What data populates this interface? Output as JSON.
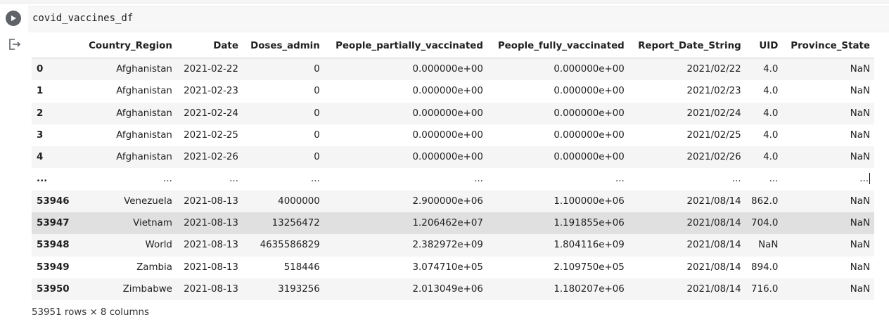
{
  "cell": {
    "code": "covid_vaccines_df",
    "run_icon": "play-icon",
    "output_icon": "output-redirect-icon"
  },
  "table": {
    "columns": [
      "",
      "Country_Region",
      "Date",
      "Doses_admin",
      "People_partially_vaccinated",
      "People_fully_vaccinated",
      "Report_Date_String",
      "UID",
      "Province_State"
    ],
    "rows": [
      {
        "index": "0",
        "cells": [
          "Afghanistan",
          "2021-02-22",
          "0",
          "0.000000e+00",
          "0.000000e+00",
          "2021/02/22",
          "4.0",
          "NaN"
        ]
      },
      {
        "index": "1",
        "cells": [
          "Afghanistan",
          "2021-02-23",
          "0",
          "0.000000e+00",
          "0.000000e+00",
          "2021/02/23",
          "4.0",
          "NaN"
        ]
      },
      {
        "index": "2",
        "cells": [
          "Afghanistan",
          "2021-02-24",
          "0",
          "0.000000e+00",
          "0.000000e+00",
          "2021/02/24",
          "4.0",
          "NaN"
        ]
      },
      {
        "index": "3",
        "cells": [
          "Afghanistan",
          "2021-02-25",
          "0",
          "0.000000e+00",
          "0.000000e+00",
          "2021/02/25",
          "4.0",
          "NaN"
        ]
      },
      {
        "index": "4",
        "cells": [
          "Afghanistan",
          "2021-02-26",
          "0",
          "0.000000e+00",
          "0.000000e+00",
          "2021/02/26",
          "4.0",
          "NaN"
        ]
      },
      {
        "index": "...",
        "cells": [
          "...",
          "...",
          "...",
          "...",
          "...",
          "...",
          "...",
          "..."
        ]
      },
      {
        "index": "53946",
        "cells": [
          "Venezuela",
          "2021-08-13",
          "4000000",
          "2.900000e+06",
          "1.100000e+06",
          "2021/08/14",
          "862.0",
          "NaN"
        ]
      },
      {
        "index": "53947",
        "cells": [
          "Vietnam",
          "2021-08-13",
          "13256472",
          "1.206462e+07",
          "1.191855e+06",
          "2021/08/14",
          "704.0",
          "NaN"
        ]
      },
      {
        "index": "53948",
        "cells": [
          "World",
          "2021-08-13",
          "4635586829",
          "2.382972e+09",
          "1.804116e+09",
          "2021/08/14",
          "NaN",
          "NaN"
        ]
      },
      {
        "index": "53949",
        "cells": [
          "Zambia",
          "2021-08-13",
          "518446",
          "3.074710e+05",
          "2.109750e+05",
          "2021/08/14",
          "894.0",
          "NaN"
        ]
      },
      {
        "index": "53950",
        "cells": [
          "Zimbabwe",
          "2021-08-13",
          "3193256",
          "2.013049e+06",
          "1.180207e+06",
          "2021/08/14",
          "716.0",
          "NaN"
        ]
      }
    ],
    "hovered_row": "53947"
  },
  "footer": {
    "shape_text": "53951 rows × 8 columns"
  },
  "colors": {
    "run_button": "#5f6368",
    "row_stripe": "#f5f5f5",
    "row_hover": "#e0e0e0"
  }
}
